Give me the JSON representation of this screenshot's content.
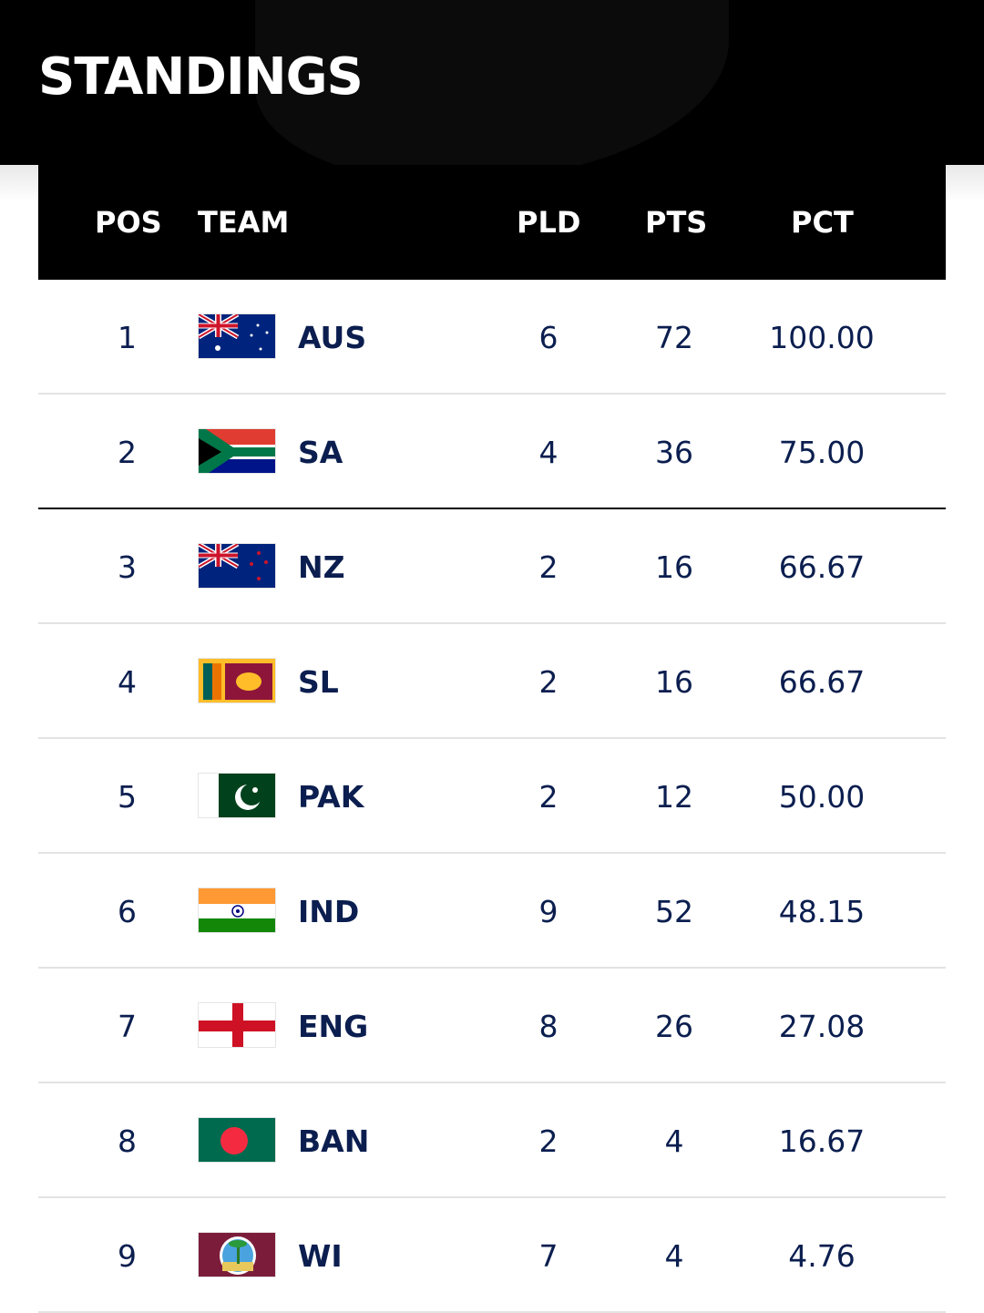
{
  "header": {
    "title": "STANDINGS"
  },
  "columns": [
    "POS",
    "TEAM",
    "PLD",
    "PTS",
    "PCT"
  ],
  "rows": [
    {
      "pos": "1",
      "team": "AUS",
      "flag": "australia-flag",
      "pld": "6",
      "pts": "72",
      "pct": "100.00"
    },
    {
      "pos": "2",
      "team": "SA",
      "flag": "south-africa-flag",
      "pld": "4",
      "pts": "36",
      "pct": "75.00"
    },
    {
      "pos": "3",
      "team": "NZ",
      "flag": "new-zealand-flag",
      "pld": "2",
      "pts": "16",
      "pct": "66.67"
    },
    {
      "pos": "4",
      "team": "SL",
      "flag": "sri-lanka-flag",
      "pld": "2",
      "pts": "16",
      "pct": "66.67"
    },
    {
      "pos": "5",
      "team": "PAK",
      "flag": "pakistan-flag",
      "pld": "2",
      "pts": "12",
      "pct": "50.00"
    },
    {
      "pos": "6",
      "team": "IND",
      "flag": "india-flag",
      "pld": "9",
      "pts": "52",
      "pct": "48.15"
    },
    {
      "pos": "7",
      "team": "ENG",
      "flag": "england-flag",
      "pld": "8",
      "pts": "26",
      "pct": "27.08"
    },
    {
      "pos": "8",
      "team": "BAN",
      "flag": "bangladesh-flag",
      "pld": "2",
      "pts": "4",
      "pct": "16.67"
    },
    {
      "pos": "9",
      "team": "WI",
      "flag": "west-indies-flag",
      "pld": "7",
      "pts": "4",
      "pct": "4.76"
    }
  ],
  "colors": {
    "text": "#0b1e4f",
    "header_bg": "#000000"
  }
}
